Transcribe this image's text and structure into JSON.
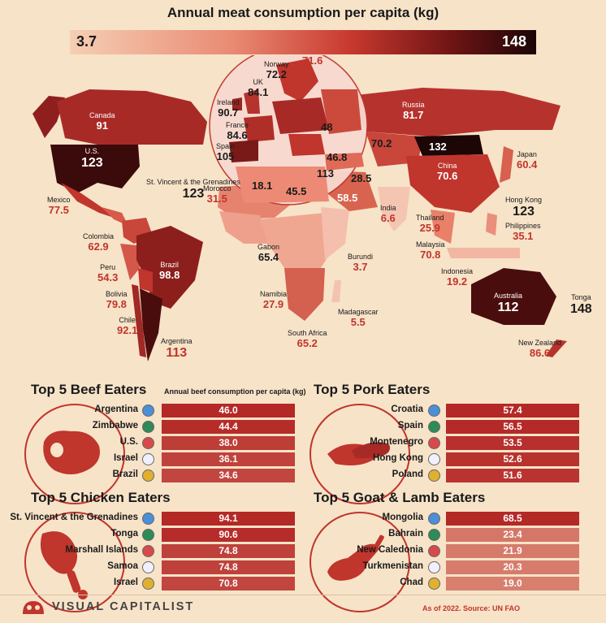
{
  "chart_data": [
    {
      "type": "map",
      "title": "Annual meat consumption per capita (kg)",
      "scale": {
        "min": "3.7",
        "max": "148"
      },
      "labels": [
        {
          "name": "Canada",
          "value": "91"
        },
        {
          "name": "U.S.",
          "value": "123"
        },
        {
          "name": "Mexico",
          "value": "77.5"
        },
        {
          "name": "St. Vincent & the Grenadines",
          "value": "123"
        },
        {
          "name": "Colombia",
          "value": "62.9"
        },
        {
          "name": "Peru",
          "value": "54.3"
        },
        {
          "name": "Brazil",
          "value": "98.8"
        },
        {
          "name": "Bolivia",
          "value": "79.8"
        },
        {
          "name": "Chile",
          "value": "92.1"
        },
        {
          "name": "Argentina",
          "value": "113"
        },
        {
          "name": "Norway",
          "value": "72.2"
        },
        {
          "name": "",
          "value": "71.6"
        },
        {
          "name": "UK",
          "value": "84.1"
        },
        {
          "name": "Ireland",
          "value": "90.7"
        },
        {
          "name": "France",
          "value": "84.6"
        },
        {
          "name": "Spain",
          "value": "105"
        },
        {
          "name": "",
          "value": "48"
        },
        {
          "name": "",
          "value": "46.8"
        },
        {
          "name": "",
          "value": "113"
        },
        {
          "name": "",
          "value": "28.5"
        },
        {
          "name": "",
          "value": "18.1"
        },
        {
          "name": "",
          "value": "45.5"
        },
        {
          "name": "",
          "value": "58.5"
        },
        {
          "name": "Morocco",
          "value": "31.5"
        },
        {
          "name": "Russia",
          "value": "81.7"
        },
        {
          "name": "",
          "value": "70.2"
        },
        {
          "name": "",
          "value": "132"
        },
        {
          "name": "China",
          "value": "70.6"
        },
        {
          "name": "Japan",
          "value": "60.4"
        },
        {
          "name": "Hong Kong",
          "value": "123"
        },
        {
          "name": "Philippines",
          "value": "35.1"
        },
        {
          "name": "India",
          "value": "6.6"
        },
        {
          "name": "Thailand",
          "value": "25.9"
        },
        {
          "name": "Malaysia",
          "value": "70.8"
        },
        {
          "name": "Indonesia",
          "value": "19.2"
        },
        {
          "name": "Gabon",
          "value": "65.4"
        },
        {
          "name": "Burundi",
          "value": "3.7"
        },
        {
          "name": "Namibia",
          "value": "27.9"
        },
        {
          "name": "Madagascar",
          "value": "5.5"
        },
        {
          "name": "South Africa",
          "value": "65.2"
        },
        {
          "name": "Australia",
          "value": "112"
        },
        {
          "name": "Tonga",
          "value": "148"
        },
        {
          "name": "New Zealand",
          "value": "86.6"
        }
      ]
    },
    {
      "type": "bar",
      "title": "Top 5 Beef Eaters",
      "subtitle": "Annual beef consumption per capita (kg)",
      "categories": [
        "Argentina",
        "Zimbabwe",
        "U.S.",
        "Israel",
        "Brazil"
      ],
      "values": [
        46.0,
        44.4,
        38.0,
        36.1,
        34.6
      ]
    },
    {
      "type": "bar",
      "title": "Top 5 Pork Eaters",
      "categories": [
        "Croatia",
        "Spain",
        "Montenegro",
        "Hong Kong",
        "Poland"
      ],
      "values": [
        57.4,
        56.5,
        53.5,
        52.6,
        51.6
      ]
    },
    {
      "type": "bar",
      "title": "Top 5 Chicken Eaters",
      "categories": [
        "St. Vincent & the Grenadines",
        "Tonga",
        "Marshall Islands",
        "Samoa",
        "Israel"
      ],
      "values": [
        94.1,
        90.6,
        74.8,
        74.8,
        70.8
      ]
    },
    {
      "type": "bar",
      "title": "Top 5 Goat & Lamb Eaters",
      "categories": [
        "Mongolia",
        "Bahrain",
        "New Caledonia",
        "Turkmenistan",
        "Chad"
      ],
      "values": [
        68.5,
        23.4,
        21.9,
        20.3,
        19.0
      ]
    }
  ],
  "footer": {
    "brand": "VISUAL CAPITALIST",
    "source": "As of 2022. Source: UN FAO"
  },
  "colors": {
    "accent": "#c0352c",
    "dark": "#2b0707",
    "background": "#f7e3c8",
    "circle": "#f7d9d0"
  },
  "icons": {
    "beef": "steak-icon",
    "pork": "sausage-icon",
    "chicken": "drumstick-icon",
    "goat": "lamb-chop-icon",
    "logo": "logo-icon"
  }
}
